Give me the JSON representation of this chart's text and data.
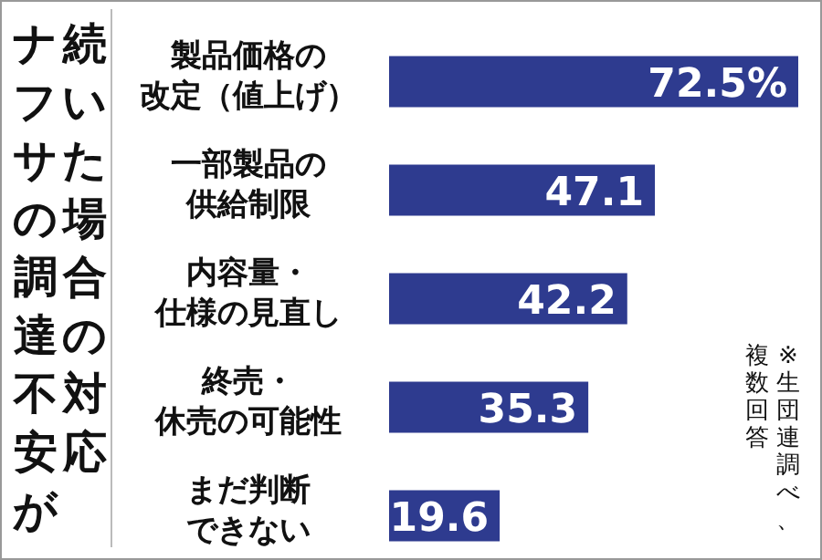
{
  "chart_data": {
    "type": "bar",
    "orientation": "horizontal",
    "title": "ナフサの調達不安が続いた場合の対応",
    "categories": [
      "製品価格の改定（値上げ）",
      "一部製品の供給制限",
      "内容量・仕様の見直し",
      "終売・休売の可能性",
      "まだ判断できない"
    ],
    "values": [
      72.5,
      47.1,
      42.2,
      35.3,
      19.6
    ],
    "value_labels": [
      "72.5%",
      "47.1",
      "42.2",
      "35.3",
      "19.6"
    ],
    "color": "#2e3b8f",
    "annotations": [
      "※生団連調べ、複数回答"
    ]
  }
}
